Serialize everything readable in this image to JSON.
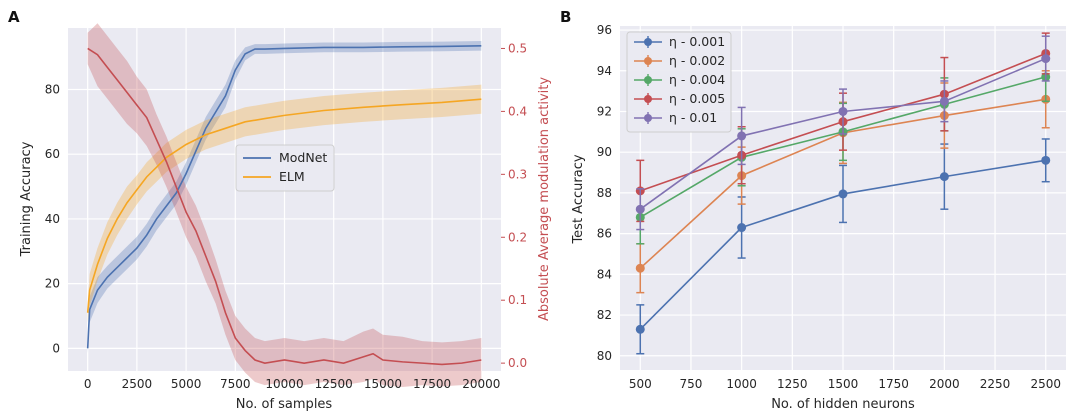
{
  "chart_data": [
    {
      "panel": "A",
      "type": "line",
      "xlabel": "No. of samples",
      "ylabel": "Training Accuracy",
      "y2label": "Absolute Average modulation activity",
      "xlim": [
        -1000,
        21000
      ],
      "ylim": [
        -7,
        99
      ],
      "y2lim": [
        -0.0125,
        0.5325
      ],
      "xticks": [
        0,
        2500,
        5000,
        7500,
        10000,
        12500,
        15000,
        17500,
        20000
      ],
      "yticks": [
        0,
        20,
        40,
        60,
        80
      ],
      "y2ticks": [
        0.0,
        0.1,
        0.2,
        0.3,
        0.4,
        0.5
      ],
      "legend_loc": "center",
      "series": [
        {
          "name": "ModNet",
          "axis": "left",
          "color": "#4C72B0",
          "x": [
            0,
            100,
            500,
            1000,
            1500,
            2000,
            2500,
            3000,
            3500,
            4000,
            4500,
            5000,
            5500,
            6000,
            6500,
            7000,
            7500,
            8000,
            8500,
            9000,
            10000,
            12000,
            14000,
            16000,
            18000,
            20000
          ],
          "y": [
            0,
            12,
            18,
            22,
            25,
            28,
            31,
            35,
            40,
            44,
            48,
            54,
            61,
            68,
            73,
            78,
            86,
            91,
            92.5,
            92.5,
            92.7,
            93,
            93,
            93.2,
            93.3,
            93.5
          ],
          "band": [
            1.5,
            4,
            4,
            3.5,
            3.5,
            3.5,
            3.5,
            3.5,
            3.5,
            3.5,
            3.5,
            3.5,
            3.5,
            3.5,
            3.5,
            3.5,
            3,
            2,
            1.5,
            1.5,
            1.5,
            1.5,
            1.5,
            1.5,
            1.5,
            1.5
          ]
        },
        {
          "name": "ELM",
          "axis": "left",
          "color": "#F5A623",
          "x": [
            0,
            100,
            500,
            1000,
            1500,
            2000,
            2500,
            3000,
            3500,
            4000,
            5000,
            6000,
            7000,
            8000,
            9000,
            10000,
            12000,
            14000,
            16000,
            18000,
            20000
          ],
          "y": [
            11,
            18,
            26,
            34,
            40,
            45,
            49,
            53,
            56,
            59,
            63,
            66,
            68,
            70,
            71,
            72,
            73.5,
            74.5,
            75.3,
            76,
            77
          ],
          "band": [
            3,
            5,
            5,
            5,
            5,
            5,
            4.5,
            4.5,
            4.5,
            4.5,
            4.5,
            4.5,
            4.5,
            4.5,
            4.5,
            4.5,
            4.5,
            4.5,
            4.5,
            4.5,
            4.5
          ]
        },
        {
          "name": "Modulation activity",
          "axis": "right",
          "color": "#C44E52",
          "x": [
            0,
            500,
            1000,
            1500,
            2000,
            2500,
            3000,
            3500,
            4000,
            4500,
            5000,
            5500,
            6000,
            6500,
            7000,
            7500,
            8000,
            8500,
            9000,
            10000,
            11000,
            12000,
            13000,
            14000,
            14500,
            15000,
            16000,
            17000,
            18000,
            19000,
            20000
          ],
          "y": [
            0.5,
            0.49,
            0.47,
            0.45,
            0.43,
            0.41,
            0.39,
            0.355,
            0.32,
            0.28,
            0.24,
            0.21,
            0.17,
            0.13,
            0.08,
            0.04,
            0.02,
            0.005,
            0.0,
            0.005,
            0.0,
            0.005,
            0.0,
            0.01,
            0.015,
            0.005,
            0.002,
            0.0,
            -0.002,
            0.0,
            0.005
          ],
          "band": [
            0.025,
            0.05,
            0.05,
            0.05,
            0.05,
            0.045,
            0.045,
            0.04,
            0.04,
            0.04,
            0.04,
            0.04,
            0.04,
            0.035,
            0.035,
            0.035,
            0.035,
            0.035,
            0.035,
            0.035,
            0.035,
            0.035,
            0.035,
            0.04,
            0.04,
            0.04,
            0.04,
            0.035,
            0.035,
            0.035,
            0.035
          ]
        }
      ]
    },
    {
      "panel": "B",
      "type": "line",
      "xlabel": "No. of hidden neurons",
      "ylabel": "Test Accuracy",
      "xlim": [
        400,
        2600
      ],
      "ylim": [
        79.3,
        96.2
      ],
      "xticks": [
        500,
        750,
        1000,
        1250,
        1500,
        1750,
        2000,
        2250,
        2500
      ],
      "yticks": [
        80,
        82,
        84,
        86,
        88,
        90,
        92,
        94,
        96
      ],
      "legend_loc": "upper left",
      "x": [
        500,
        1000,
        1500,
        2000,
        2500
      ],
      "series": [
        {
          "name": "η - 0.001",
          "color": "#4C72B0",
          "values": [
            81.3,
            86.3,
            87.95,
            88.8,
            89.6
          ],
          "err": [
            1.2,
            1.5,
            1.4,
            1.6,
            1.05
          ]
        },
        {
          "name": "η - 0.002",
          "color": "#DD8452",
          "values": [
            84.3,
            88.85,
            90.95,
            91.8,
            92.6
          ],
          "err": [
            1.2,
            1.4,
            1.5,
            1.6,
            1.4
          ]
        },
        {
          "name": "η - 0.004",
          "color": "#55A868",
          "values": [
            86.8,
            89.75,
            91.0,
            92.35,
            93.7
          ],
          "err": [
            1.3,
            1.4,
            1.4,
            1.3,
            1.2
          ]
        },
        {
          "name": "η - 0.005",
          "color": "#C44E52",
          "values": [
            88.1,
            89.85,
            91.5,
            92.85,
            94.85
          ],
          "err": [
            1.5,
            1.4,
            1.4,
            1.8,
            1.0
          ]
        },
        {
          "name": "η - 0.01",
          "color": "#8172B2",
          "values": [
            87.2,
            90.8,
            92.0,
            92.5,
            94.6
          ],
          "err": [
            1.0,
            1.4,
            1.1,
            1.0,
            1.1
          ]
        }
      ]
    }
  ]
}
